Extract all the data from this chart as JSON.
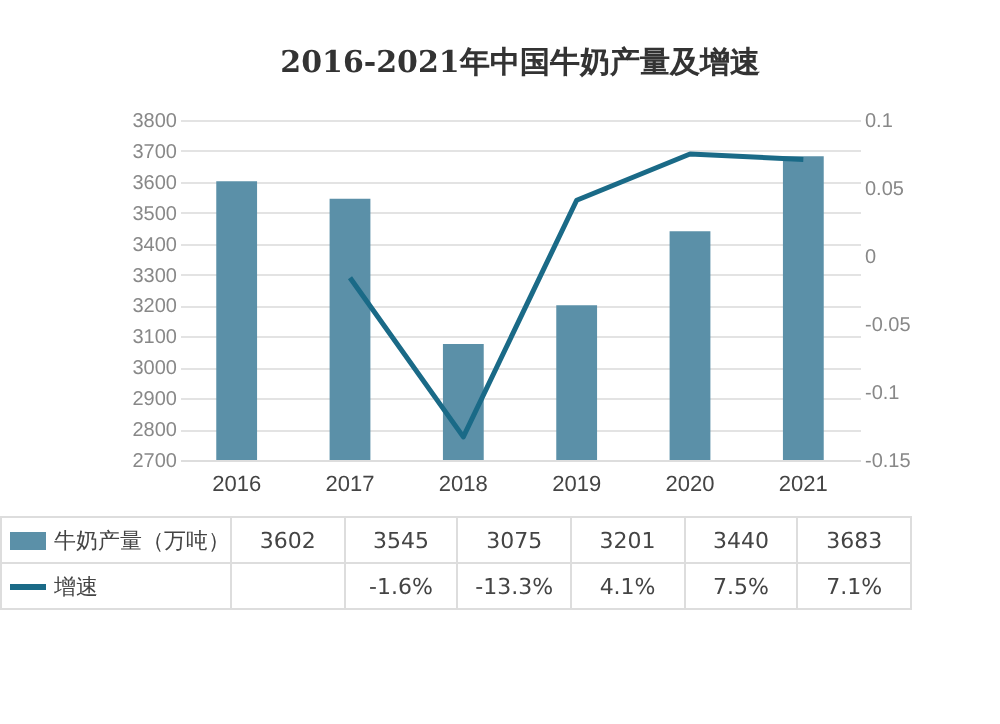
{
  "chart_data": {
    "type": "bar",
    "title": "2016-2021年中国牛奶产量及增速",
    "categories": [
      "2016",
      "2017",
      "2018",
      "2019",
      "2020",
      "2021"
    ],
    "series": [
      {
        "name": "牛奶产量（万吨）",
        "color": "#5b90a8",
        "values": [
          3602,
          3545,
          3075,
          3201,
          3440,
          3683
        ],
        "value_labels": [
          "3602",
          "3545",
          "3075",
          "3201",
          "3440",
          "3683"
        ]
      },
      {
        "name": "增速",
        "type": "line",
        "axis": "y2",
        "color": "#1a6a87",
        "values": [
          null,
          -0.016,
          -0.133,
          0.041,
          0.075,
          0.071
        ],
        "value_labels": [
          null,
          "-1.6%",
          "-13.3%",
          "4.1%",
          "7.5%",
          "7.1%"
        ]
      }
    ],
    "ylim": [
      2700,
      3800
    ],
    "yticks": [
      2700,
      2800,
      2900,
      3000,
      3100,
      3200,
      3300,
      3400,
      3500,
      3600,
      3700,
      3800
    ],
    "y2lim": [
      -0.15,
      0.1
    ],
    "y2ticks": [
      -0.15,
      -0.1,
      -0.05,
      0,
      0.05,
      0.1
    ],
    "grid": "y",
    "legend": "bottom"
  }
}
